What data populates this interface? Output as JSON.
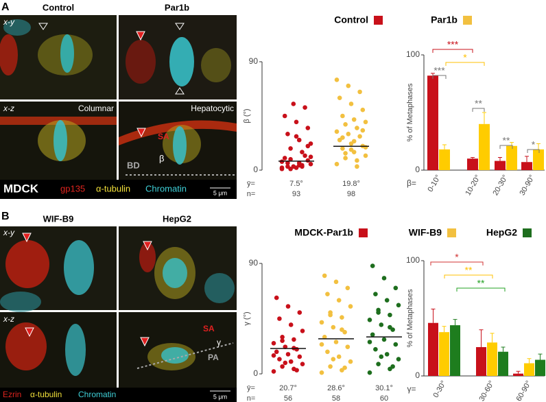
{
  "panels": {
    "A": {
      "label": "A",
      "columns": [
        "Control",
        "Par1b"
      ],
      "rows": [
        "x-y",
        "x-z"
      ],
      "xz_labels": [
        "Columnar",
        "Hepatocytic"
      ],
      "overlay": [
        "SA",
        "BD",
        "β"
      ],
      "cell_line": "MDCK",
      "stains": [
        "gp135",
        "α-tubulin",
        "Chromatin"
      ],
      "scale": "5 μm"
    },
    "B": {
      "label": "B",
      "columns": [
        "WIF-B9",
        "HepG2"
      ],
      "rows": [
        "x-y",
        "x-z"
      ],
      "overlay": [
        "SA",
        "PA",
        "γ"
      ],
      "stains": [
        "Ezrin",
        "α-tubulin",
        "Chromatin"
      ],
      "scale": "5 μm"
    },
    "stain_colors": [
      "#e0241e",
      "#f2e03a",
      "#3fd0d8"
    ]
  },
  "chart_data": [
    {
      "type": "strip",
      "ylabel": "β (°)",
      "ylim": [
        0,
        90
      ],
      "yticks": [
        0,
        90
      ],
      "mean_prefix": "ȳ=",
      "n_prefix": "n=",
      "series": [
        {
          "name": "Control",
          "color": "#c8101a",
          "values": [
            2,
            3,
            1,
            5,
            4,
            6,
            8,
            2,
            10,
            12,
            3,
            7,
            15,
            18,
            22,
            25,
            30,
            35,
            40,
            45,
            52,
            55,
            1,
            4,
            9,
            11,
            6,
            3,
            20,
            28
          ],
          "mean": 7.5,
          "mean_label": "7.5°",
          "n": 93
        },
        {
          "name": "Par1b",
          "color": "#f2c040",
          "values": [
            5,
            8,
            10,
            12,
            15,
            18,
            20,
            22,
            25,
            28,
            30,
            32,
            35,
            38,
            40,
            42,
            45,
            50,
            55,
            60,
            65,
            70,
            75,
            3,
            14,
            19,
            24,
            27,
            33,
            17
          ],
          "mean": 19.8,
          "mean_label": "19.8°",
          "n": 98
        }
      ]
    },
    {
      "type": "bar",
      "ylabel": "% of Metaphases",
      "ylim": [
        0,
        100
      ],
      "yticks": [
        0,
        100
      ],
      "xprefix": "β=",
      "categories": [
        "0-10°",
        "10-20°",
        "20-30°",
        "30-90°"
      ],
      "series": [
        {
          "color": "#c8101a",
          "values": [
            82,
            10,
            8,
            7
          ],
          "errors": [
            2,
            1,
            3,
            5
          ]
        },
        {
          "color": "#ffcc00",
          "values": [
            18,
            40,
            21,
            18
          ],
          "errors": [
            4,
            10,
            3,
            5
          ]
        }
      ],
      "annotations": [
        {
          "text": "***",
          "color": "#c8101a"
        },
        {
          "text": "*",
          "color": "#ffc000"
        },
        {
          "text": "***",
          "color": "#777777"
        },
        {
          "text": "**",
          "color": "#777777"
        },
        {
          "text": "**",
          "color": "#777777"
        },
        {
          "text": "*",
          "color": "#777777"
        }
      ]
    },
    {
      "type": "strip",
      "ylabel": "γ (°)",
      "ylim": [
        0,
        90
      ],
      "yticks": [
        0,
        90
      ],
      "mean_prefix": "ȳ=",
      "n_prefix": "n=",
      "series": [
        {
          "name": "MDCK-Par1b",
          "color": "#c8101a",
          "values": [
            2,
            4,
            6,
            8,
            10,
            12,
            14,
            16,
            18,
            20,
            22,
            25,
            28,
            30,
            35,
            40,
            45,
            50,
            55,
            62,
            3,
            9,
            15,
            21,
            27
          ],
          "mean": 20.7,
          "mean_label": "20.7°",
          "n": 56
        },
        {
          "name": "WIF-B9",
          "color": "#f2c040",
          "values": [
            1,
            3,
            6,
            10,
            14,
            18,
            22,
            26,
            30,
            34,
            38,
            42,
            46,
            50,
            55,
            60,
            65,
            70,
            75,
            80,
            5,
            12,
            24,
            36,
            48
          ],
          "mean": 28.6,
          "mean_label": "28.6°",
          "n": 58
        },
        {
          "name": "HepG2",
          "color": "#1e6e1e",
          "values": [
            1,
            4,
            8,
            12,
            16,
            20,
            24,
            28,
            32,
            36,
            40,
            44,
            48,
            52,
            56,
            60,
            65,
            70,
            78,
            88,
            6,
            14,
            26,
            38,
            50
          ],
          "mean": 30.1,
          "mean_label": "30.1°",
          "n": 60
        }
      ]
    },
    {
      "type": "bar",
      "ylabel": "% of Metaphases",
      "ylim": [
        0,
        100
      ],
      "yticks": [
        0,
        100
      ],
      "xprefix": "γ=",
      "categories": [
        "0-30°",
        "30-60°",
        "60-90°"
      ],
      "series": [
        {
          "color": "#c8101a",
          "values": [
            46,
            25,
            2
          ],
          "errors": [
            12,
            15,
            2
          ]
        },
        {
          "color": "#ffcc00",
          "values": [
            38,
            29,
            11
          ],
          "errors": [
            5,
            8,
            4
          ]
        },
        {
          "color": "#1e7d1e",
          "values": [
            44,
            21,
            14
          ],
          "errors": [
            5,
            4,
            5
          ]
        }
      ],
      "annotations": [
        {
          "text": "*",
          "color": "#d03030"
        },
        {
          "text": "**",
          "color": "#ffc000"
        },
        {
          "text": "**",
          "color": "#22a022"
        }
      ]
    }
  ]
}
